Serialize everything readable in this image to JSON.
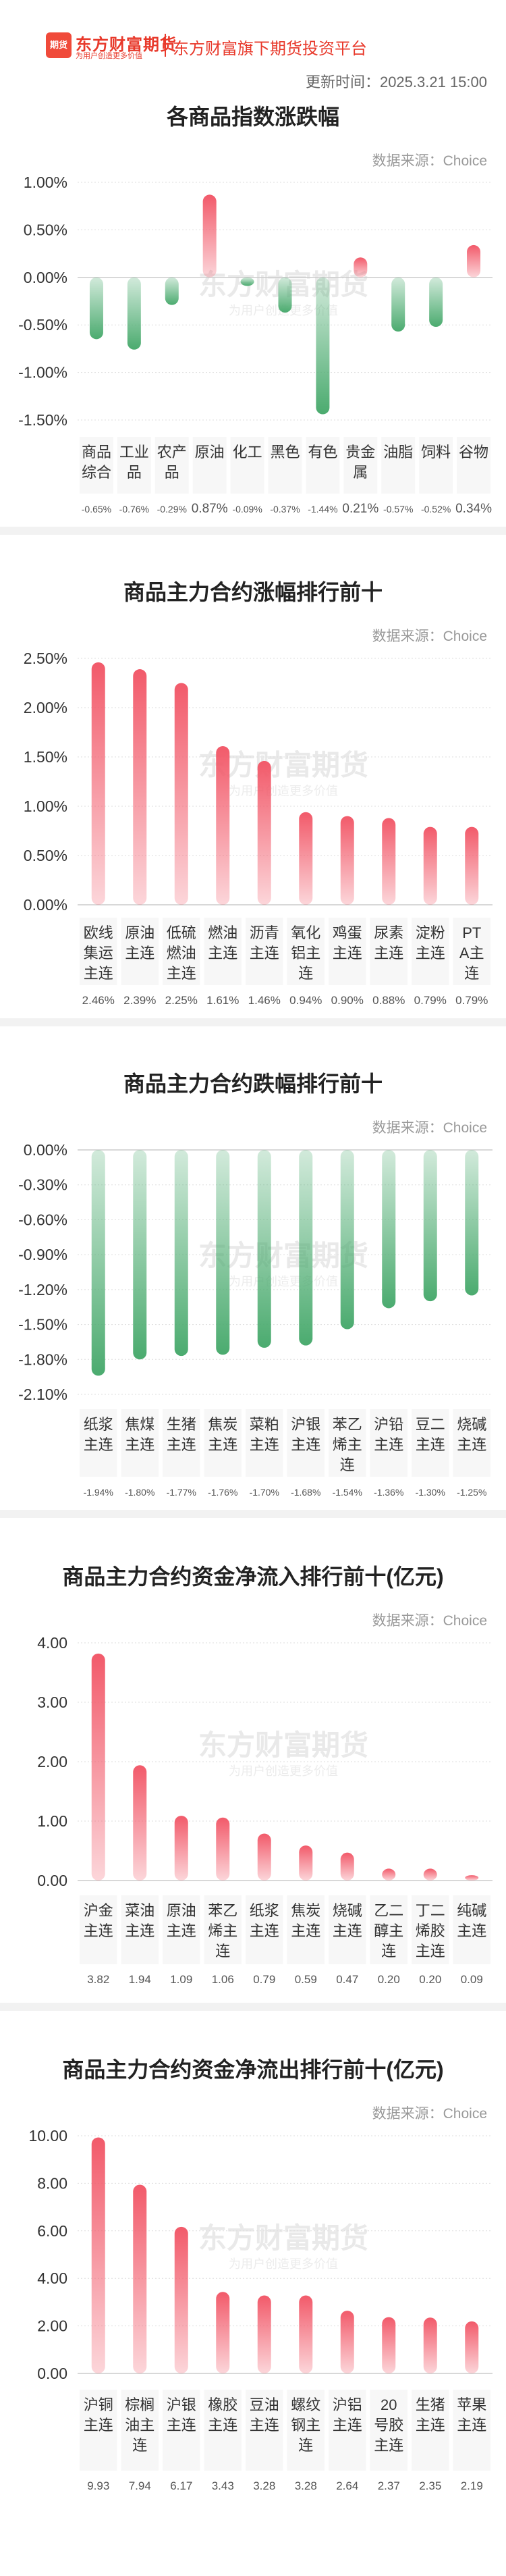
{
  "header": {
    "logo_icon_text": "期货",
    "logo_title": "东方财富期货",
    "logo_sub": "为用户创造更多价值",
    "slogan": "东方财富旗下期货投资平台",
    "update_time": "更新时间：2025.3.21 15:00"
  },
  "watermark": {
    "main": "东方财富期货",
    "sub": "为用户创造更多价值"
  },
  "colors": {
    "up": "#f25a6a",
    "down": "#4bab6f",
    "axis_text": "#333333",
    "grid": "#dddddd"
  },
  "sections": [
    {
      "title": "各商品指数涨跌幅",
      "source": "数据来源：Choice"
    },
    {
      "title": "商品主力合约涨幅排行前十",
      "source": "数据来源：Choice"
    },
    {
      "title": "商品主力合约跌幅排行前十",
      "source": "数据来源：Choice"
    },
    {
      "title": "商品主力合约资金净流入排行前十(亿元)",
      "source": "数据来源：Choice"
    },
    {
      "title": "商品主力合约资金净流出排行前十(亿元)",
      "source": "数据来源：Choice"
    }
  ],
  "chart_data": [
    {
      "type": "bar",
      "title": "各商品指数涨跌幅",
      "categories": [
        "商品综合",
        "工业品",
        "农产品",
        "原油",
        "化工",
        "黑色",
        "有色",
        "贵金属",
        "油脂",
        "饲料",
        "谷物"
      ],
      "values": [
        -0.65,
        -0.76,
        -0.29,
        0.87,
        -0.09,
        -0.37,
        -1.44,
        0.21,
        -0.57,
        -0.52,
        0.34
      ],
      "value_labels": [
        "-0.65%",
        "-0.76%",
        "-0.29%",
        "0.87%",
        "-0.09%",
        "-0.37%",
        "-1.44%",
        "0.21%",
        "-0.57%",
        "-0.52%",
        "0.34%"
      ],
      "y_ticks": [
        "1.00%",
        "0.50%",
        "0.00%",
        "-0.50%",
        "-1.00%",
        "-1.50%"
      ],
      "ylim": [
        -1.5,
        1.0
      ]
    },
    {
      "type": "bar",
      "title": "商品主力合约涨幅排行前十",
      "categories": [
        "欧线集运主连",
        "原油主连",
        "低硫燃油主连",
        "燃油主连",
        "沥青主连",
        "氧化铝主连",
        "鸡蛋主连",
        "尿素主连",
        "淀粉主连",
        "PTA主连"
      ],
      "values": [
        2.46,
        2.39,
        2.25,
        1.61,
        1.46,
        0.94,
        0.9,
        0.88,
        0.79,
        0.79
      ],
      "value_labels": [
        "2.46%",
        "2.39%",
        "2.25%",
        "1.61%",
        "1.46%",
        "0.94%",
        "0.90%",
        "0.88%",
        "0.79%",
        "0.79%"
      ],
      "y_ticks": [
        "2.50%",
        "2.00%",
        "1.50%",
        "1.00%",
        "0.50%",
        "0.00%"
      ],
      "ylim": [
        0,
        2.5
      ]
    },
    {
      "type": "bar",
      "title": "商品主力合约跌幅排行前十",
      "categories": [
        "纸浆主连",
        "焦煤主连",
        "生猪主连",
        "焦炭主连",
        "菜粕主连",
        "沪银主连",
        "苯乙烯主连",
        "沪铅主连",
        "豆二主连",
        "烧碱主连"
      ],
      "values": [
        -1.94,
        -1.8,
        -1.77,
        -1.76,
        -1.7,
        -1.68,
        -1.54,
        -1.36,
        -1.3,
        -1.25
      ],
      "value_labels": [
        "-1.94%",
        "-1.80%",
        "-1.77%",
        "-1.76%",
        "-1.70%",
        "-1.68%",
        "-1.54%",
        "-1.36%",
        "-1.30%",
        "-1.25%"
      ],
      "y_ticks": [
        "0.00%",
        "-0.30%",
        "-0.60%",
        "-0.90%",
        "-1.20%",
        "-1.50%",
        "-1.80%",
        "-2.10%"
      ],
      "ylim": [
        -2.1,
        0
      ]
    },
    {
      "type": "bar",
      "title": "商品主力合约资金净流入排行前十(亿元)",
      "categories": [
        "沪金主连",
        "菜油主连",
        "原油主连",
        "苯乙烯主连",
        "纸浆主连",
        "焦炭主连",
        "烧碱主连",
        "乙二醇主连",
        "丁二烯胶主连",
        "纯碱主连"
      ],
      "values": [
        3.82,
        1.94,
        1.09,
        1.06,
        0.79,
        0.59,
        0.47,
        0.2,
        0.2,
        0.09
      ],
      "value_labels": [
        "3.82",
        "1.94",
        "1.09",
        "1.06",
        "0.79",
        "0.59",
        "0.47",
        "0.20",
        "0.20",
        "0.09"
      ],
      "y_ticks": [
        "4.00",
        "3.00",
        "2.00",
        "1.00",
        "0.00"
      ],
      "ylim": [
        0,
        4.0
      ]
    },
    {
      "type": "bar",
      "title": "商品主力合约资金净流出排行前十(亿元)",
      "categories": [
        "沪铜主连",
        "棕榈油主连",
        "沪银主连",
        "橡胶主连",
        "豆油主连",
        "螺纹钢主连",
        "沪铝主连",
        "20号胶主连",
        "生猪主连",
        "苹果主连"
      ],
      "values": [
        9.93,
        7.94,
        6.17,
        3.43,
        3.28,
        3.28,
        2.64,
        2.37,
        2.35,
        2.19
      ],
      "value_labels": [
        "9.93",
        "7.94",
        "6.17",
        "3.43",
        "3.28",
        "3.28",
        "2.64",
        "2.37",
        "2.35",
        "2.19"
      ],
      "y_ticks": [
        "10.00",
        "8.00",
        "6.00",
        "4.00",
        "2.00",
        "0.00"
      ],
      "ylim": [
        0,
        10.0
      ]
    }
  ]
}
